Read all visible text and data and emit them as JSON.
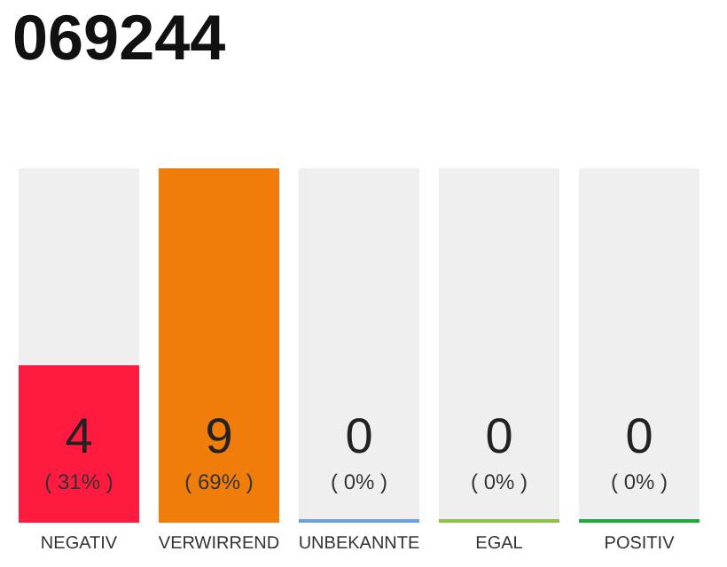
{
  "chart_data": {
    "type": "bar",
    "title": "069244",
    "categories": [
      "NEGATIV",
      "VERWIRREND",
      "UNBEKANNTE",
      "EGAL",
      "POSITIV"
    ],
    "values": [
      4,
      9,
      0,
      0,
      0
    ],
    "colors": [
      "#ff1a40",
      "#f07d0a",
      "#6f9ee0",
      "#8bc34a",
      "#22a843"
    ],
    "value_labels": [
      "4\n( 31% )",
      "9\n( 69% )",
      "0\n( 0% )",
      "0\n( 0% )",
      "0\n( 0% )"
    ],
    "grid": false
  }
}
